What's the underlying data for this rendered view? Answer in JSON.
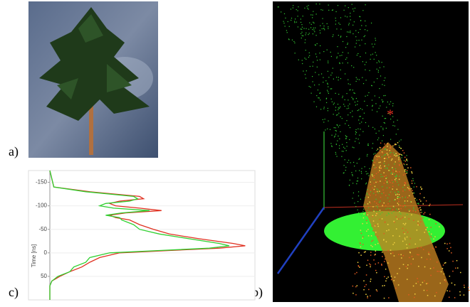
{
  "panel_labels": {
    "a": "a)",
    "b": "b)",
    "c": "c)"
  },
  "chart_data": {
    "type": "line",
    "y_label": "Time [ns]",
    "y": [
      -175,
      -140,
      -130,
      -120,
      -115,
      -110,
      -105,
      -100,
      -95,
      -90,
      -85,
      -80,
      -75,
      -70,
      -60,
      -50,
      -40,
      -30,
      -20,
      -15,
      -10,
      -5,
      0,
      10,
      20,
      30,
      40,
      50,
      60,
      70,
      80,
      100
    ],
    "series": [
      {
        "color": "#e03020",
        "values": [
          0,
          0.02,
          0.2,
          0.45,
          0.47,
          0.35,
          0.3,
          0.33,
          0.45,
          0.56,
          0.38,
          0.3,
          0.33,
          0.4,
          0.45,
          0.52,
          0.6,
          0.75,
          0.92,
          0.98,
          0.85,
          0.6,
          0.35,
          0.25,
          0.2,
          0.16,
          0.1,
          0.05,
          0.01,
          0,
          0,
          0
        ]
      },
      {
        "color": "#30d030",
        "values": [
          0,
          0.02,
          0.18,
          0.42,
          0.44,
          0.4,
          0.28,
          0.25,
          0.32,
          0.5,
          0.36,
          0.28,
          0.35,
          0.36,
          0.42,
          0.45,
          0.55,
          0.7,
          0.85,
          0.9,
          0.8,
          0.55,
          0.3,
          0.2,
          0.18,
          0.12,
          0.1,
          0.04,
          0.01,
          0,
          0,
          0
        ]
      }
    ],
    "xlim": [
      0,
      1
    ],
    "ylim": [
      -175,
      100
    ],
    "yticks": [
      -150,
      -100,
      -50,
      0,
      50
    ],
    "y_inverted": true,
    "grid": true
  }
}
